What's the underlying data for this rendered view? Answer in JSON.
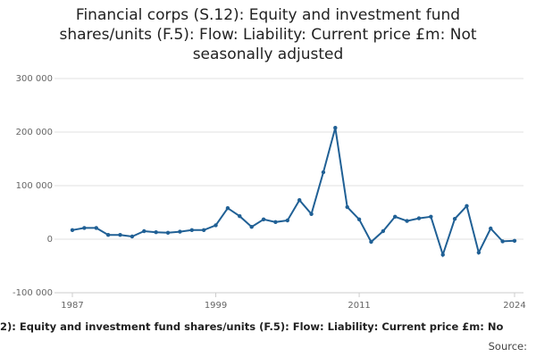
{
  "chart_data": {
    "type": "line",
    "title": "Financial corps (S.12): Equity and investment fund shares/units (F.5): Flow: Liability: Current price £m: Not seasonally adjusted",
    "footer": "2): Equity and investment fund shares/units (F.5): Flow: Liability: Current price £m: No",
    "source": "Source:",
    "x": [
      1987,
      1988,
      1989,
      1990,
      1991,
      1992,
      1993,
      1994,
      1995,
      1996,
      1997,
      1998,
      1999,
      2000,
      2001,
      2002,
      2003,
      2004,
      2005,
      2006,
      2007,
      2008,
      2009,
      2010,
      2011,
      2012,
      2013,
      2014,
      2015,
      2016,
      2017,
      2018,
      2019,
      2020,
      2021,
      2022,
      2023,
      2024
    ],
    "series": [
      {
        "color": "#206095",
        "values": [
          17000,
          21000,
          21000,
          8000,
          8000,
          5000,
          15000,
          13000,
          12000,
          14000,
          17000,
          17000,
          26000,
          58000,
          43000,
          23000,
          37000,
          32000,
          35000,
          73000,
          47000,
          125000,
          208000,
          60000,
          37000,
          -5000,
          15000,
          42000,
          34000,
          39000,
          42000,
          -29000,
          38000,
          62000,
          -25000,
          20000,
          -4000,
          -3000
        ]
      }
    ],
    "xlim": [
      1987,
      2024
    ],
    "xticks": [
      1987,
      1999,
      2011,
      2024
    ],
    "ylim": [
      -100000,
      300000
    ],
    "yticks": [
      {
        "value": -100000,
        "label": "-100 000"
      },
      {
        "value": 0,
        "label": "0"
      },
      {
        "value": 100000,
        "label": "100 000"
      },
      {
        "value": 200000,
        "label": "200 000"
      },
      {
        "value": 300000,
        "label": "300 000"
      }
    ],
    "grid": true
  }
}
